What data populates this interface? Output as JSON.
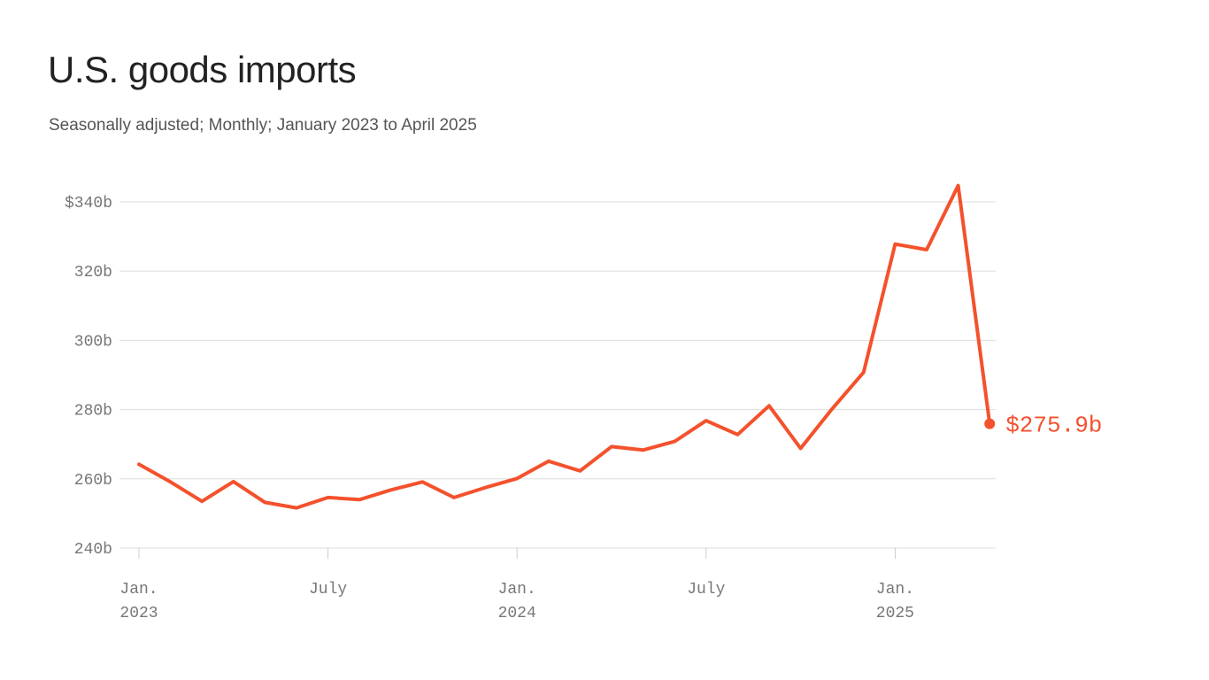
{
  "chart_data": {
    "type": "line",
    "title": "U.S. goods imports",
    "subtitle": "Seasonally adjusted; Monthly; January 2023 to April 2025",
    "color": "#f4512c",
    "ylim": [
      240,
      340
    ],
    "yticks": [
      {
        "value": 240,
        "label": "240b"
      },
      {
        "value": 260,
        "label": "260b"
      },
      {
        "value": 280,
        "label": "280b"
      },
      {
        "value": 300,
        "label": "300b"
      },
      {
        "value": 320,
        "label": "320b"
      },
      {
        "value": 340,
        "label": "$340b"
      }
    ],
    "xticks": [
      {
        "date": "2023-01",
        "line1": "Jan.",
        "line2": "2023"
      },
      {
        "date": "2023-07",
        "line1": "July",
        "line2": ""
      },
      {
        "date": "2024-01",
        "line1": "Jan.",
        "line2": "2024"
      },
      {
        "date": "2024-07",
        "line1": "July",
        "line2": ""
      },
      {
        "date": "2025-01",
        "line1": "Jan.",
        "line2": "2025"
      }
    ],
    "grid": true,
    "series": [
      {
        "x": [
          "2023-01",
          "2023-02",
          "2023-03",
          "2023-04",
          "2023-05",
          "2023-06",
          "2023-07",
          "2023-08",
          "2023-09",
          "2023-10",
          "2023-11",
          "2023-12",
          "2024-01",
          "2024-02",
          "2024-03",
          "2024-04",
          "2024-05",
          "2024-06",
          "2024-07",
          "2024-08",
          "2024-09",
          "2024-10",
          "2024-11",
          "2024-12",
          "2025-01",
          "2025-02",
          "2025-03",
          "2025-04"
        ],
        "values": [
          264.2,
          259.1,
          253.5,
          259.2,
          253.2,
          251.6,
          254.6,
          254.0,
          256.8,
          259.1,
          254.6,
          257.5,
          260.1,
          265.1,
          262.3,
          269.3,
          268.3,
          270.8,
          276.8,
          272.8,
          281.1,
          268.8,
          280.2,
          290.8,
          327.8,
          326.2,
          344.7,
          275.9
        ]
      }
    ],
    "end_label": "$275.9b"
  }
}
